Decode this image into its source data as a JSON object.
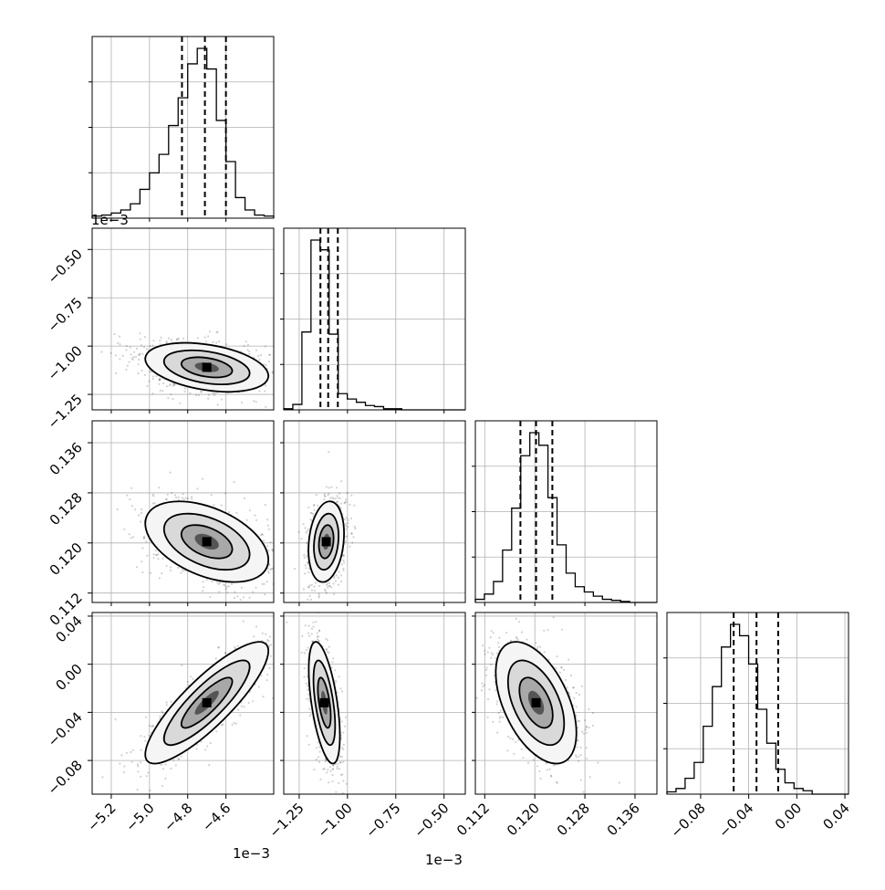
{
  "chart_data": {
    "type": "corner",
    "grid": true,
    "parameters": [
      {
        "range": [
          -5.3,
          -4.35
        ],
        "offset": "1e−3",
        "ticks": [
          -5.2,
          -5.0,
          -4.8,
          -4.6
        ],
        "tick_labels": [
          "−5.2",
          "−5.0",
          "−4.8",
          "−4.6"
        ],
        "quantiles": [
          -4.83,
          -4.71,
          -4.6
        ]
      },
      {
        "range": [
          -1.33,
          -0.39
        ],
        "offset": "1e−3",
        "ticks": [
          -1.25,
          -1.0,
          -0.75,
          -0.5
        ],
        "tick_labels": [
          "−1.25",
          "−1.00",
          "−0.75",
          "−0.50"
        ],
        "quantiles": [
          -1.14,
          -1.1,
          -1.05
        ]
      },
      {
        "range": [
          0.1105,
          0.1395
        ],
        "offset": "",
        "ticks": [
          0.112,
          0.12,
          0.128,
          0.136
        ],
        "tick_labels": [
          "0.112",
          "0.120",
          "0.128",
          "0.136"
        ],
        "quantiles": [
          0.1177,
          0.1202,
          0.1228
        ]
      },
      {
        "range": [
          -0.108,
          0.043
        ],
        "offset": "",
        "ticks": [
          -0.08,
          -0.04,
          0.0,
          0.04
        ],
        "tick_labels": [
          "−0.08",
          "−0.04",
          "0.00",
          "0.04"
        ],
        "quantiles": [
          -0.0525,
          -0.0335,
          -0.0155
        ]
      }
    ],
    "histograms": [
      {
        "edges_start": -5.3,
        "bin_width": 0.05,
        "counts": [
          2,
          3,
          5,
          8,
          14,
          28,
          44,
          62,
          90,
          117,
          150,
          165,
          145,
          95,
          55,
          20,
          8,
          3,
          2
        ]
      },
      {
        "edges_start": -1.33,
        "bin_width": 0.047,
        "counts": [
          1,
          5,
          72,
          157,
          148,
          70,
          15,
          10,
          7,
          4,
          3,
          1,
          1,
          0,
          0,
          0,
          0,
          0,
          0,
          0
        ]
      },
      {
        "edges_start": 0.1105,
        "bin_width": 0.00145,
        "counts": [
          3,
          8,
          20,
          50,
          90,
          140,
          162,
          150,
          100,
          55,
          28,
          15,
          10,
          6,
          3,
          2,
          1,
          0,
          0,
          0
        ]
      },
      {
        "edges_start": -0.108,
        "bin_width": 0.00755,
        "counts": [
          2,
          5,
          14,
          28,
          60,
          95,
          130,
          150,
          140,
          115,
          75,
          45,
          22,
          10,
          5,
          3,
          0,
          0,
          0,
          0
        ]
      }
    ],
    "pairs": [
      {
        "row": 1,
        "col": 0,
        "center": [
          -4.7,
          -1.11
        ],
        "sigma": [
          0.14,
          0.055
        ],
        "corr": -0.35
      },
      {
        "row": 2,
        "col": 0,
        "center": [
          -4.7,
          0.1202
        ],
        "sigma": [
          0.14,
          0.0028
        ],
        "corr": -0.45
      },
      {
        "row": 2,
        "col": 1,
        "center": [
          -1.11,
          0.1202
        ],
        "sigma": [
          0.04,
          0.0028
        ],
        "corr": 0.2
      },
      {
        "row": 3,
        "col": 0,
        "center": [
          -4.7,
          -0.032
        ],
        "sigma": [
          0.14,
          0.022
        ],
        "corr": 0.85
      },
      {
        "row": 3,
        "col": 1,
        "center": [
          -1.12,
          -0.032
        ],
        "sigma": [
          0.035,
          0.022
        ],
        "corr": -0.55
      },
      {
        "row": 3,
        "col": 2,
        "center": [
          0.1202,
          -0.032
        ],
        "sigma": [
          0.0028,
          0.022
        ],
        "corr": -0.5
      }
    ]
  }
}
